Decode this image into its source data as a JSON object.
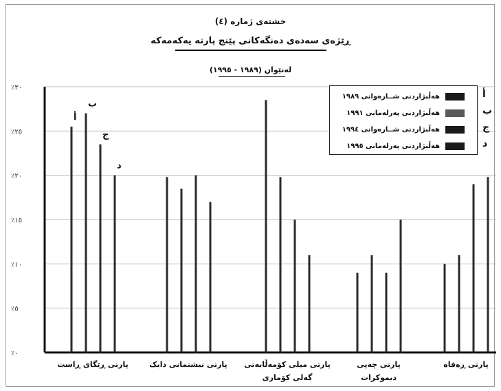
{
  "chart_data": {
    "type": "bar",
    "title": "خشتەی ژمارە (٤)",
    "subtitle": "ڕێژەی سەدەی دەنگەکانی پێنج پارتە یەکەمەکە",
    "subtitle2": "لەنێوان (١٩٨٩ - ١٩٩٥)",
    "categories": [
      "پارتی ڕێگای ڕاست",
      "پارتی نیشتمانی دایک",
      "پارتی میلی کۆمەڵایەتی گەلی کۆماری",
      "پارتی چەپی دیموکرات",
      "پارتی ڕەفاه"
    ],
    "y_tick_labels": [
      "٪٠",
      "٪٥",
      "٪١٠",
      "٪١٥",
      "٪٢٠",
      "٪٢٥",
      "٪٣٠"
    ],
    "ylim": [
      0,
      30
    ],
    "grid": true,
    "legend_position": "top-right",
    "bar_letter_labels": [
      "أ",
      "ب",
      "ج",
      "د"
    ],
    "series": [
      {
        "name": "هەڵبژاردنی شــارەوانی ١٩٨٩",
        "values": [
          25.5,
          19.8,
          28.5,
          9.0,
          10.0
        ]
      },
      {
        "name": "هەڵبژاردنی پەرلەمانی ١٩٩١",
        "values": [
          27.0,
          18.5,
          19.8,
          11.0,
          11.0
        ]
      },
      {
        "name": "هەڵبژاردنی شــارەوانی ١٩٩٤",
        "values": [
          23.5,
          20.0,
          15.0,
          9.0,
          19.0
        ]
      },
      {
        "name": "هەڵبژاردنی پەرلەمانی ١٩٩٥",
        "values": [
          20.0,
          17.0,
          11.0,
          15.0,
          19.8
        ]
      }
    ],
    "legend_keys": [
      "أ",
      "ب",
      "ج",
      "د"
    ],
    "colors": {
      "bar": "#2a2a2a",
      "grid": "#bdbdbd",
      "axis": "#111111"
    }
  }
}
